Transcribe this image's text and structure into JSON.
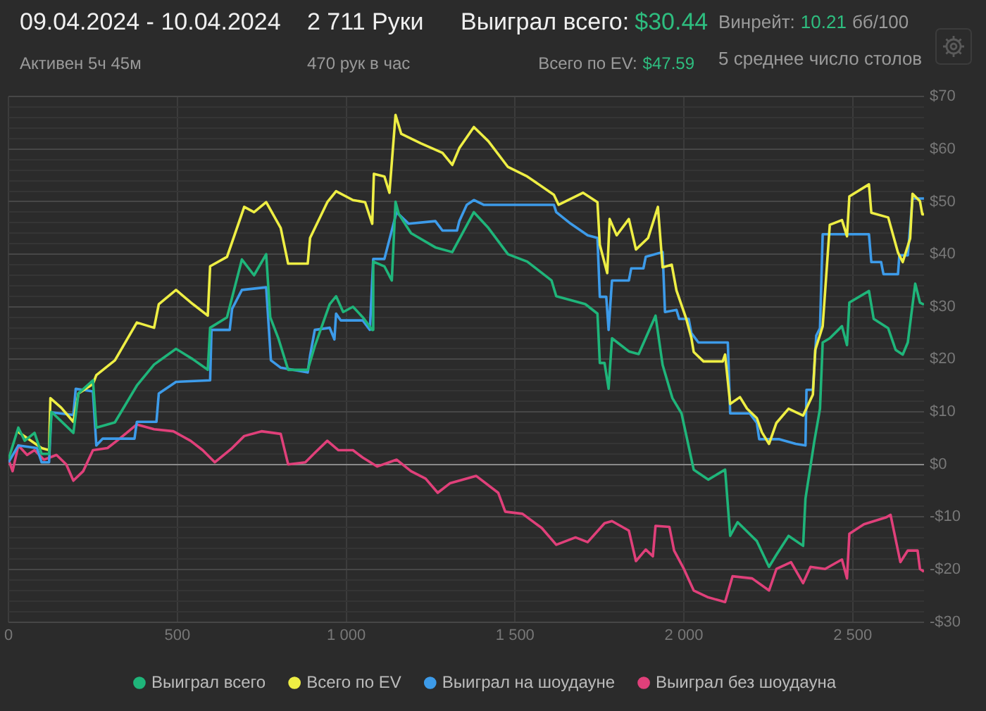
{
  "chart_data": {
    "type": "line",
    "title": "09.04.2024 - 10.04.2024",
    "annotations": [
      "Активен 5ч 45м",
      "2 711 Руки",
      "470 рук в час",
      "Выиграл всего:",
      "$30.44",
      "Всего по EV:",
      "$47.59",
      "Винрейт:",
      "10.21",
      "бб/100",
      "5 среднее число столов"
    ],
    "xlim": [
      0,
      2711
    ],
    "xticks": [
      0,
      500,
      {
        "value": 1000,
        "label": "1 000"
      },
      {
        "value": 1500,
        "label": "1 500"
      },
      {
        "value": 2000,
        "label": "2 000"
      },
      {
        "value": 2500,
        "label": "2 500"
      }
    ],
    "ylim": [
      -30,
      70
    ],
    "yticks": [
      {
        "value": -30,
        "label": "-$30"
      },
      {
        "value": -28,
        "label": null
      },
      {
        "value": -26,
        "label": null
      },
      {
        "value": -24,
        "label": null
      },
      {
        "value": -22,
        "label": null
      },
      {
        "value": -20,
        "label": "-$20"
      },
      {
        "value": -18,
        "label": null
      },
      {
        "value": -16,
        "label": null
      },
      {
        "value": -14,
        "label": null
      },
      {
        "value": -12,
        "label": null
      },
      {
        "value": -10,
        "label": "-$10"
      },
      {
        "value": -8,
        "label": null
      },
      {
        "value": -6,
        "label": null
      },
      {
        "value": -4,
        "label": null
      },
      {
        "value": -2,
        "label": null
      },
      {
        "value": 0,
        "label": "$0"
      },
      {
        "value": 2,
        "label": null
      },
      {
        "value": 4,
        "label": null
      },
      {
        "value": 6,
        "label": null
      },
      {
        "value": 8,
        "label": null
      },
      {
        "value": 10,
        "label": "$10"
      },
      {
        "value": 12,
        "label": null
      },
      {
        "value": 14,
        "label": null
      },
      {
        "value": 16,
        "label": null
      },
      {
        "value": 18,
        "label": null
      },
      {
        "value": 20,
        "label": "$20"
      },
      {
        "value": 22,
        "label": null
      },
      {
        "value": 24,
        "label": null
      },
      {
        "value": 26,
        "label": null
      },
      {
        "value": 28,
        "label": null
      },
      {
        "value": 30,
        "label": "$30"
      },
      {
        "value": 32,
        "label": null
      },
      {
        "value": 34,
        "label": null
      },
      {
        "value": 36,
        "label": null
      },
      {
        "value": 38,
        "label": null
      },
      {
        "value": 40,
        "label": "$40"
      },
      {
        "value": 42,
        "label": null
      },
      {
        "value": 44,
        "label": null
      },
      {
        "value": 46,
        "label": null
      },
      {
        "value": 48,
        "label": null
      },
      {
        "value": 50,
        "label": "$50"
      },
      {
        "value": 52,
        "label": null
      },
      {
        "value": 54,
        "label": null
      },
      {
        "value": 56,
        "label": null
      },
      {
        "value": 58,
        "label": null
      },
      {
        "value": 60,
        "label": "$60"
      },
      {
        "value": 62,
        "label": null
      },
      {
        "value": 64,
        "label": null
      },
      {
        "value": 66,
        "label": null
      },
      {
        "value": 68,
        "label": null
      },
      {
        "value": 70,
        "label": "$70"
      }
    ],
    "grid": true,
    "legend": "bottom",
    "series": [
      {
        "name": "Выиграл всего",
        "color": "#1fb57a",
        "x": [
          0,
          29,
          48,
          77,
          98,
          120,
          127,
          192,
          207,
          250,
          260,
          315,
          380,
          431,
          496,
          546,
          590,
          597,
          647,
          691,
          727,
          763,
          775,
          799,
          828,
          886,
          907,
          951,
          970,
          991,
          1020,
          1049,
          1077,
          1080,
          1113,
          1135,
          1146,
          1156,
          1192,
          1264,
          1314,
          1378,
          1421,
          1479,
          1536,
          1608,
          1622,
          1708,
          1744,
          1751,
          1765,
          1777,
          1787,
          1837,
          1866,
          1916,
          1937,
          1966,
          1993,
          2029,
          2072,
          2122,
          2137,
          2159,
          2216,
          2252,
          2274,
          2310,
          2353,
          2360,
          2386,
          2403,
          2411,
          2432,
          2468,
          2483,
          2490,
          2548,
          2562,
          2605,
          2627,
          2648,
          2663,
          2685,
          2699,
          2711
        ],
        "values": [
          1,
          7,
          4.5,
          6,
          2,
          2,
          10,
          6,
          13.5,
          16,
          7,
          8,
          15,
          19,
          22,
          20,
          18,
          26,
          28,
          39,
          36,
          40,
          28,
          24,
          18,
          18,
          22.5,
          30.5,
          32,
          29,
          30,
          28,
          25.6,
          38.6,
          37.7,
          35,
          50,
          47.6,
          44,
          41.3,
          40.4,
          48,
          45,
          40,
          38.6,
          35,
          32,
          30.5,
          28.7,
          19.3,
          19.3,
          14.4,
          24,
          21.5,
          21,
          28.3,
          18.9,
          12.6,
          9.7,
          -1,
          -2.9,
          -1,
          -13.6,
          -11,
          -14.6,
          -19.5,
          -17.2,
          -13.6,
          -15.5,
          -6.5,
          4.3,
          10.6,
          23.2,
          24,
          26.3,
          22.7,
          30.8,
          33,
          27.7,
          25.9,
          21.8,
          20.9,
          23.2,
          34.4,
          30.8,
          30.4
        ]
      },
      {
        "name": "Всего по EV",
        "color": "#eeee44",
        "x": [
          26,
          98,
          120,
          124,
          156,
          192,
          207,
          250,
          260,
          315,
          380,
          431,
          445,
          496,
          546,
          590,
          597,
          647,
          698,
          727,
          763,
          806,
          828,
          886,
          893,
          944,
          970,
          1020,
          1056,
          1077,
          1082,
          1113,
          1128,
          1146,
          1163,
          1221,
          1285,
          1314,
          1335,
          1378,
          1421,
          1479,
          1536,
          1615,
          1629,
          1701,
          1744,
          1751,
          1773,
          1780,
          1801,
          1837,
          1858,
          1894,
          1923,
          1937,
          1964,
          1978,
          2007,
          2022,
          2029,
          2058,
          2115,
          2122,
          2137,
          2166,
          2187,
          2216,
          2231,
          2252,
          2274,
          2310,
          2353,
          2382,
          2389,
          2411,
          2432,
          2468,
          2483,
          2490,
          2548,
          2555,
          2605,
          2634,
          2648,
          2670,
          2677,
          2699,
          2706,
          2711
        ],
        "values": [
          6.3,
          3.1,
          2.7,
          12.6,
          10.8,
          8.1,
          13.5,
          15.3,
          17,
          19.8,
          27,
          26,
          30.5,
          33.2,
          30.5,
          28.3,
          37.7,
          39.5,
          49,
          48,
          49.9,
          45,
          38.2,
          38.2,
          43.1,
          49.9,
          52,
          50.3,
          49.9,
          45.8,
          55.3,
          54.8,
          51.7,
          66.5,
          62.9,
          61.1,
          59.3,
          57,
          60.2,
          64.2,
          61.5,
          56.6,
          54.8,
          51.3,
          49.4,
          51.7,
          49.9,
          41.8,
          36.4,
          46.7,
          43.6,
          46.7,
          40.9,
          43.1,
          49,
          37.5,
          38,
          33.1,
          27.7,
          24.1,
          21.4,
          19.6,
          19.6,
          20.9,
          11.5,
          12.8,
          10.6,
          8.8,
          6.1,
          3.9,
          7.9,
          10.6,
          9.3,
          13.3,
          21.8,
          26.3,
          45.6,
          46.5,
          43.4,
          51,
          53.3,
          47.9,
          47,
          40.3,
          38.5,
          43,
          51.5,
          50.1,
          47.6,
          47.6
        ]
      },
      {
        "name": "Выиграл на шоудауне",
        "color": "#3d9be9",
        "x": [
          0,
          29,
          84,
          98,
          120,
          127,
          192,
          199,
          250,
          260,
          279,
          373,
          380,
          438,
          445,
          496,
          597,
          601,
          655,
          662,
          691,
          763,
          777,
          806,
          886,
          893,
          907,
          951,
          965,
          970,
          984,
          1049,
          1070,
          1080,
          1113,
          1149,
          1185,
          1264,
          1285,
          1328,
          1335,
          1357,
          1378,
          1407,
          1615,
          1622,
          1665,
          1715,
          1744,
          1751,
          1770,
          1777,
          1787,
          1837,
          1844,
          1880,
          1887,
          1937,
          1944,
          1978,
          1986,
          2014,
          2022,
          2043,
          2130,
          2137,
          2195,
          2216,
          2223,
          2281,
          2331,
          2360,
          2363,
          2382,
          2392,
          2403,
          2411,
          2548,
          2555,
          2584,
          2591,
          2634,
          2638,
          2663,
          2677,
          2711
        ],
        "values": [
          0.4,
          3.6,
          3.1,
          0.4,
          0.4,
          9.9,
          9.4,
          14.4,
          13.9,
          3.6,
          4.9,
          4.9,
          8.1,
          8.1,
          13.5,
          15.7,
          16,
          25.6,
          25.6,
          29.6,
          33.2,
          33.7,
          19.8,
          18.4,
          17.5,
          20.7,
          25.6,
          26,
          23.8,
          28.7,
          27.4,
          27.4,
          25.6,
          39.1,
          39.1,
          48,
          45.8,
          46.3,
          44.5,
          44.5,
          46.3,
          49.4,
          50.3,
          49.4,
          49.4,
          48,
          45.8,
          43.6,
          43.1,
          31.9,
          31.9,
          25.6,
          35,
          35,
          37.3,
          37.3,
          39.5,
          40.4,
          29,
          29.4,
          27.7,
          27.7,
          25,
          23.2,
          23.2,
          9.7,
          9.7,
          7.9,
          4.8,
          4.8,
          3.9,
          3.6,
          14.2,
          14.2,
          24.5,
          25.9,
          43.8,
          43.8,
          38.5,
          38.5,
          36.2,
          36.2,
          39.8,
          39.8,
          50.6,
          50.6
        ]
      },
      {
        "name": "Выиграл без шоудауна",
        "color": "#e0407a",
        "x": [
          0,
          12,
          29,
          55,
          77,
          105,
          142,
          171,
          192,
          221,
          250,
          293,
          329,
          380,
          431,
          488,
          539,
          575,
          611,
          662,
          698,
          749,
          806,
          828,
          879,
          907,
          944,
          977,
          1020,
          1049,
          1092,
          1149,
          1192,
          1235,
          1271,
          1307,
          1385,
          1450,
          1471,
          1522,
          1579,
          1622,
          1679,
          1715,
          1765,
          1787,
          1837,
          1858,
          1887,
          1908,
          1916,
          1957,
          1971,
          2000,
          2029,
          2072,
          2122,
          2144,
          2202,
          2252,
          2274,
          2317,
          2353,
          2375,
          2418,
          2468,
          2483,
          2490,
          2533,
          2598,
          2612,
          2641,
          2663,
          2692,
          2699,
          2711
        ],
        "values": [
          0.9,
          -1.3,
          3.6,
          1.8,
          2.7,
          0.9,
          1.8,
          0,
          -3.1,
          -1.3,
          2.7,
          3.1,
          4.9,
          7.6,
          6.7,
          6.3,
          4.5,
          2.7,
          0.4,
          3.1,
          5.4,
          6.3,
          5.8,
          0,
          0.4,
          2.2,
          4.5,
          2.7,
          2.7,
          1.3,
          -0.4,
          0.9,
          -1.3,
          -2.7,
          -5.4,
          -3.6,
          -2.2,
          -5.4,
          -9,
          -9.4,
          -12.1,
          -15.3,
          -13.9,
          -14.8,
          -11.2,
          -10.8,
          -12.6,
          -18.4,
          -16.2,
          -17.5,
          -11.7,
          -11.9,
          -16.4,
          -19.9,
          -24,
          -25.3,
          -26.2,
          -21.3,
          -21.7,
          -24,
          -19.9,
          -18.6,
          -22.6,
          -19.5,
          -19.9,
          -18.1,
          -21.7,
          -13.2,
          -11.4,
          -10.1,
          -9.6,
          -18.6,
          -16.4,
          -16.4,
          -19.9,
          -20.4
        ]
      }
    ]
  }
}
